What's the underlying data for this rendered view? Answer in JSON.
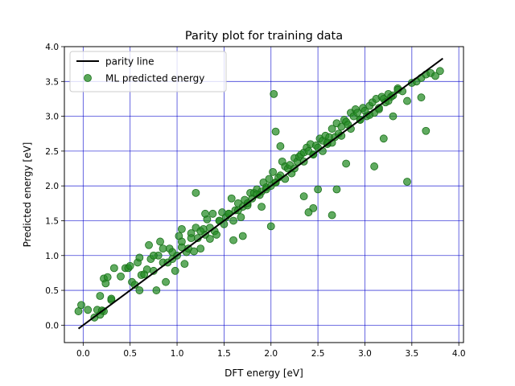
{
  "chart_data": {
    "type": "scatter",
    "title": "Parity plot for training data",
    "xlabel": "DFT energy [eV]",
    "ylabel": "Predicted energy [eV]",
    "xlim": [
      -0.2,
      4.05
    ],
    "ylim": [
      -0.25,
      4.0
    ],
    "xticks": [
      0.0,
      0.5,
      1.0,
      1.5,
      2.0,
      2.5,
      3.0,
      3.5,
      4.0
    ],
    "yticks": [
      0.0,
      0.5,
      1.0,
      1.5,
      2.0,
      2.5,
      3.0,
      3.5,
      4.0
    ],
    "xtick_labels": [
      "0.0",
      "0.5",
      "1.0",
      "1.5",
      "2.0",
      "2.5",
      "3.0",
      "3.5",
      "4.0"
    ],
    "ytick_labels": [
      "0.0",
      "0.5",
      "1.0",
      "1.5",
      "2.0",
      "2.5",
      "3.0",
      "3.5",
      "4.0"
    ],
    "grid": true,
    "grid_color": "#0000cc",
    "legend_position": "upper-left",
    "legend": [
      {
        "label": "parity line",
        "kind": "line",
        "color": "#000000"
      },
      {
        "label": "ML predicted energy",
        "kind": "marker",
        "color": "#228b22"
      }
    ],
    "series": [
      {
        "name": "parity line",
        "kind": "line",
        "color": "#000000",
        "x": [
          -0.05,
          3.83
        ],
        "y": [
          -0.05,
          3.83
        ]
      },
      {
        "name": "ML predicted energy",
        "kind": "scatter",
        "color": "#228b22",
        "x": [
          -0.05,
          -0.02,
          0.05,
          0.12,
          0.15,
          0.18,
          0.2,
          0.22,
          0.24,
          0.26,
          0.3,
          0.33,
          0.4,
          0.45,
          0.48,
          0.5,
          0.52,
          0.55,
          0.58,
          0.6,
          0.62,
          0.65,
          0.68,
          0.7,
          0.72,
          0.75,
          0.78,
          0.8,
          0.82,
          0.85,
          0.88,
          0.9,
          0.92,
          0.95,
          0.98,
          1.0,
          1.02,
          1.05,
          1.08,
          1.1,
          1.12,
          1.15,
          1.18,
          1.2,
          1.22,
          1.25,
          1.28,
          1.3,
          1.32,
          1.35,
          1.38,
          1.4,
          1.42,
          1.45,
          1.48,
          1.5,
          1.52,
          1.55,
          1.58,
          1.6,
          1.62,
          1.65,
          1.68,
          1.7,
          1.72,
          1.75,
          1.78,
          1.8,
          1.82,
          1.85,
          1.88,
          1.9,
          1.92,
          1.95,
          1.98,
          2.0,
          2.02,
          2.05,
          2.08,
          2.1,
          2.12,
          2.15,
          2.18,
          2.2,
          2.22,
          2.25,
          2.28,
          2.3,
          2.32,
          2.35,
          2.38,
          2.4,
          2.42,
          2.45,
          2.48,
          2.5,
          2.52,
          2.55,
          2.58,
          2.6,
          2.62,
          2.65,
          2.68,
          2.7,
          2.72,
          2.75,
          2.78,
          2.8,
          2.82,
          2.85,
          2.88,
          2.9,
          2.92,
          2.95,
          2.98,
          3.0,
          3.02,
          3.05,
          3.08,
          3.1,
          3.12,
          3.15,
          3.18,
          3.2,
          3.22,
          3.25,
          3.28,
          3.3,
          3.35,
          3.4,
          3.45,
          3.5,
          3.55,
          3.6,
          3.65,
          3.7,
          3.75,
          3.8,
          0.75,
          0.85,
          0.95,
          1.05,
          1.15,
          1.25,
          1.35,
          1.45,
          1.55,
          1.65,
          1.75,
          1.85,
          1.95,
          2.05,
          2.15,
          2.25,
          2.35,
          2.45,
          2.55,
          2.65,
          2.75,
          2.85,
          2.95,
          3.05,
          3.15,
          3.25,
          2.03,
          2.05,
          2.1,
          2.6,
          2.65,
          3.45,
          3.6,
          3.65,
          0.3,
          0.22,
          0.18,
          2.5,
          2.45,
          2.4,
          2.0,
          1.7,
          1.2,
          1.3,
          1.6,
          2.35,
          2.7,
          2.8,
          3.1,
          3.2,
          3.3,
          3.35,
          1.9,
          1.05,
          0.6
        ],
        "y": [
          0.2,
          0.29,
          0.22,
          0.11,
          0.22,
          0.42,
          0.21,
          0.67,
          0.6,
          0.69,
          0.36,
          0.82,
          0.7,
          0.82,
          0.82,
          0.85,
          0.62,
          0.58,
          0.9,
          0.97,
          0.72,
          0.73,
          0.8,
          1.15,
          0.95,
          0.78,
          0.5,
          1.0,
          1.2,
          0.9,
          0.62,
          0.9,
          1.1,
          0.95,
          0.78,
          1.0,
          1.28,
          1.12,
          0.88,
          1.05,
          1.1,
          1.32,
          1.06,
          1.4,
          1.25,
          1.1,
          1.38,
          1.3,
          1.52,
          1.24,
          1.6,
          1.35,
          1.3,
          1.5,
          1.62,
          1.45,
          1.55,
          1.6,
          1.82,
          1.5,
          1.65,
          1.75,
          1.55,
          1.7,
          1.8,
          1.72,
          1.9,
          1.82,
          1.9,
          1.95,
          1.87,
          1.92,
          2.05,
          1.98,
          2.1,
          2.0,
          2.2,
          2.05,
          2.12,
          2.15,
          2.35,
          2.28,
          2.25,
          2.3,
          2.18,
          2.4,
          2.35,
          2.42,
          2.45,
          2.48,
          2.55,
          2.5,
          2.6,
          2.45,
          2.58,
          2.55,
          2.68,
          2.65,
          2.72,
          2.6,
          2.7,
          2.82,
          2.7,
          2.9,
          2.75,
          2.85,
          2.95,
          2.92,
          2.88,
          3.05,
          3.0,
          3.1,
          3.05,
          2.95,
          3.12,
          3.08,
          3.0,
          3.15,
          3.2,
          3.05,
          3.25,
          3.1,
          3.28,
          3.25,
          3.2,
          3.32,
          3.28,
          3.3,
          3.4,
          3.36,
          3.22,
          3.48,
          3.5,
          3.55,
          3.6,
          3.62,
          3.58,
          3.65,
          1.0,
          1.1,
          1.05,
          1.2,
          1.25,
          1.35,
          1.4,
          1.5,
          1.6,
          1.65,
          1.75,
          1.88,
          1.95,
          2.05,
          2.1,
          2.25,
          2.35,
          2.45,
          2.5,
          2.62,
          2.72,
          2.82,
          2.95,
          3.02,
          3.12,
          3.22,
          3.32,
          2.78,
          2.57,
          2.62,
          1.58,
          2.06,
          3.27,
          2.79,
          0.38,
          0.2,
          0.15,
          1.95,
          1.68,
          1.62,
          1.42,
          1.28,
          1.9,
          1.6,
          1.22,
          1.85,
          1.95,
          2.32,
          2.28,
          2.68,
          3.0,
          3.38,
          1.7,
          1.38,
          0.5
        ]
      }
    ]
  }
}
